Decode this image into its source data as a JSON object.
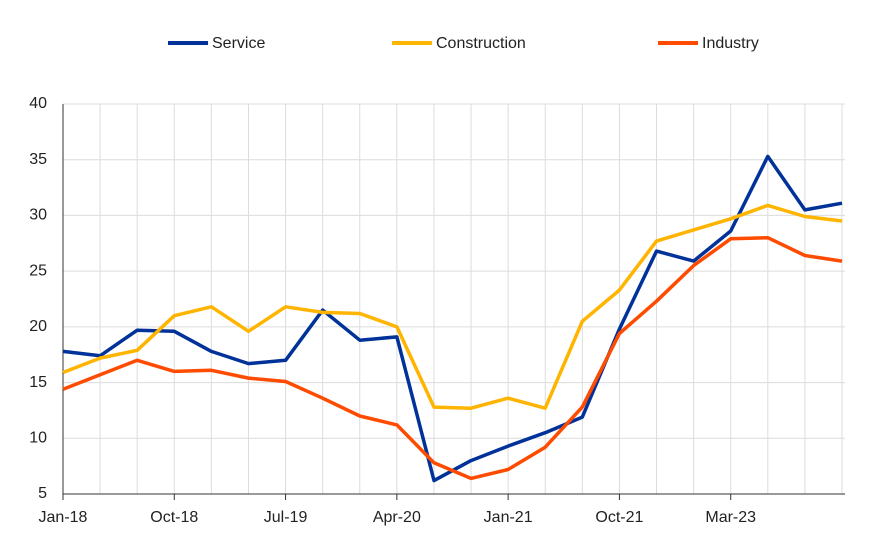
{
  "chart_data": {
    "type": "line",
    "categories": [
      "Jan-18",
      null,
      null,
      "Oct-18",
      null,
      null,
      "Jul-19",
      null,
      null,
      "Apr-20",
      null,
      null,
      "Jan-21",
      null,
      null,
      "Oct-21",
      null,
      null,
      "Mar-23",
      null,
      null,
      null
    ],
    "series": [
      {
        "name": "Service",
        "color": "#003299",
        "values": [
          17.8,
          17.4,
          19.7,
          19.6,
          17.8,
          16.7,
          17.0,
          21.5,
          18.8,
          19.1,
          6.2,
          8.0,
          9.3,
          10.5,
          11.9,
          19.8,
          26.8,
          25.9,
          28.6,
          35.3,
          30.5,
          31.1
        ]
      },
      {
        "name": "Construction",
        "color": "#ffb400",
        "values": [
          15.9,
          17.2,
          17.9,
          21.0,
          21.8,
          19.6,
          21.8,
          21.3,
          21.2,
          20.0,
          12.8,
          12.7,
          13.6,
          12.7,
          20.5,
          23.3,
          27.7,
          28.7,
          29.7,
          30.9,
          29.9,
          29.5
        ]
      },
      {
        "name": "Industry",
        "color": "#ff4b00",
        "values": [
          14.4,
          15.7,
          17.0,
          16.0,
          16.1,
          15.4,
          15.1,
          13.6,
          12.0,
          11.2,
          7.8,
          6.4,
          7.2,
          9.2,
          12.8,
          19.4,
          22.3,
          25.5,
          27.9,
          28.0,
          26.4,
          25.9
        ]
      }
    ],
    "ylim": [
      5,
      40
    ],
    "yticks": [
      5,
      10,
      15,
      20,
      25,
      30,
      35,
      40
    ],
    "grid": true,
    "legend": "top"
  }
}
